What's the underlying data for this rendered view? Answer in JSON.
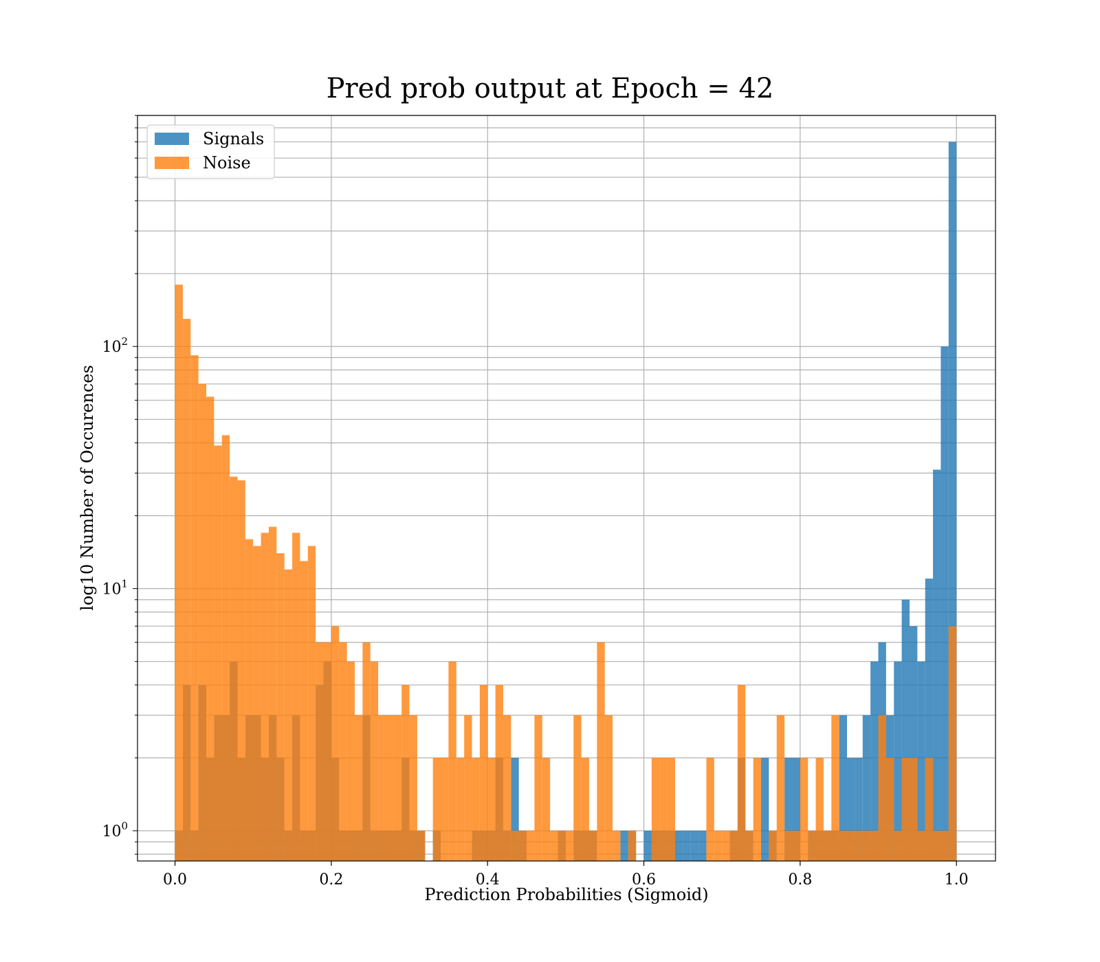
{
  "chart_data": {
    "type": "bar",
    "title": "Pred prob output at Epoch = 42",
    "xlabel": "Prediction Probabilities (Sigmoid)",
    "ylabel": "log10 Number of Occurences",
    "xlim": [
      -0.048,
      1.05
    ],
    "ylim": [
      0.75,
      900
    ],
    "yscale": "log",
    "xticks": [
      0.0,
      0.2,
      0.4,
      0.6,
      0.8,
      1.0
    ],
    "xtick_labels": [
      "0.0",
      "0.2",
      "0.4",
      "0.6",
      "0.8",
      "1.0"
    ],
    "ytick_labels": [
      {
        "base": "10",
        "exp": "0"
      },
      {
        "base": "10",
        "exp": "1"
      },
      {
        "base": "10",
        "exp": "2"
      }
    ],
    "grid": true,
    "legend_position": "top-left",
    "bin_width": 0.01,
    "series": [
      {
        "name": "Signals",
        "color": "#1f77b4",
        "bins": [
          [
            0.0,
            1
          ],
          [
            0.01,
            4
          ],
          [
            0.02,
            1
          ],
          [
            0.03,
            4
          ],
          [
            0.04,
            2
          ],
          [
            0.05,
            3
          ],
          [
            0.06,
            3
          ],
          [
            0.07,
            5
          ],
          [
            0.08,
            2
          ],
          [
            0.09,
            3
          ],
          [
            0.1,
            3
          ],
          [
            0.11,
            2
          ],
          [
            0.12,
            3
          ],
          [
            0.13,
            2
          ],
          [
            0.14,
            1
          ],
          [
            0.15,
            3
          ],
          [
            0.16,
            1
          ],
          [
            0.17,
            1
          ],
          [
            0.18,
            4
          ],
          [
            0.19,
            5
          ],
          [
            0.2,
            2
          ],
          [
            0.21,
            1
          ],
          [
            0.22,
            1
          ],
          [
            0.23,
            1
          ],
          [
            0.24,
            3
          ],
          [
            0.25,
            1
          ],
          [
            0.26,
            1
          ],
          [
            0.27,
            1
          ],
          [
            0.28,
            1
          ],
          [
            0.29,
            2
          ],
          [
            0.3,
            1
          ],
          [
            0.31,
            1
          ],
          [
            0.33,
            1
          ],
          [
            0.38,
            1
          ],
          [
            0.39,
            1
          ],
          [
            0.4,
            1
          ],
          [
            0.41,
            2
          ],
          [
            0.42,
            1
          ],
          [
            0.43,
            2
          ],
          [
            0.44,
            1
          ],
          [
            0.49,
            1
          ],
          [
            0.51,
            1
          ],
          [
            0.52,
            1
          ],
          [
            0.53,
            1
          ],
          [
            0.57,
            1
          ],
          [
            0.58,
            1
          ],
          [
            0.6,
            1
          ],
          [
            0.61,
            1
          ],
          [
            0.62,
            1
          ],
          [
            0.63,
            1
          ],
          [
            0.64,
            1
          ],
          [
            0.65,
            1
          ],
          [
            0.66,
            1
          ],
          [
            0.67,
            1
          ],
          [
            0.71,
            1
          ],
          [
            0.72,
            2
          ],
          [
            0.73,
            1
          ],
          [
            0.75,
            2
          ],
          [
            0.76,
            1
          ],
          [
            0.78,
            2
          ],
          [
            0.79,
            2
          ],
          [
            0.81,
            1
          ],
          [
            0.82,
            1
          ],
          [
            0.83,
            1
          ],
          [
            0.84,
            1
          ],
          [
            0.85,
            3
          ],
          [
            0.86,
            2
          ],
          [
            0.87,
            2
          ],
          [
            0.88,
            3
          ],
          [
            0.89,
            5
          ],
          [
            0.9,
            6
          ],
          [
            0.91,
            3
          ],
          [
            0.92,
            5
          ],
          [
            0.93,
            9
          ],
          [
            0.94,
            7
          ],
          [
            0.95,
            5
          ],
          [
            0.96,
            11
          ],
          [
            0.97,
            31
          ],
          [
            0.98,
            100
          ],
          [
            0.99,
            700
          ]
        ]
      },
      {
        "name": "Noise",
        "color": "#ff7f0e",
        "bins": [
          [
            0.0,
            180
          ],
          [
            0.01,
            130
          ],
          [
            0.02,
            92
          ],
          [
            0.03,
            70
          ],
          [
            0.04,
            62
          ],
          [
            0.05,
            39
          ],
          [
            0.06,
            43
          ],
          [
            0.07,
            29
          ],
          [
            0.08,
            28
          ],
          [
            0.09,
            16
          ],
          [
            0.1,
            15
          ],
          [
            0.11,
            17
          ],
          [
            0.12,
            18
          ],
          [
            0.13,
            14
          ],
          [
            0.14,
            12
          ],
          [
            0.15,
            17
          ],
          [
            0.16,
            13
          ],
          [
            0.17,
            15
          ],
          [
            0.18,
            6
          ],
          [
            0.19,
            6
          ],
          [
            0.2,
            7
          ],
          [
            0.21,
            6
          ],
          [
            0.22,
            5
          ],
          [
            0.23,
            3
          ],
          [
            0.24,
            6
          ],
          [
            0.25,
            5
          ],
          [
            0.26,
            3
          ],
          [
            0.27,
            3
          ],
          [
            0.28,
            3
          ],
          [
            0.29,
            4
          ],
          [
            0.3,
            3
          ],
          [
            0.31,
            1
          ],
          [
            0.33,
            2
          ],
          [
            0.34,
            2
          ],
          [
            0.35,
            5
          ],
          [
            0.36,
            2
          ],
          [
            0.37,
            3
          ],
          [
            0.38,
            2
          ],
          [
            0.39,
            4
          ],
          [
            0.4,
            2
          ],
          [
            0.41,
            4
          ],
          [
            0.42,
            3
          ],
          [
            0.43,
            1
          ],
          [
            0.44,
            1
          ],
          [
            0.45,
            1
          ],
          [
            0.46,
            3
          ],
          [
            0.47,
            2
          ],
          [
            0.48,
            1
          ],
          [
            0.49,
            1
          ],
          [
            0.5,
            1
          ],
          [
            0.51,
            3
          ],
          [
            0.52,
            2
          ],
          [
            0.53,
            1
          ],
          [
            0.54,
            6
          ],
          [
            0.55,
            3
          ],
          [
            0.56,
            1
          ],
          [
            0.58,
            1
          ],
          [
            0.61,
            2
          ],
          [
            0.62,
            2
          ],
          [
            0.63,
            2
          ],
          [
            0.68,
            2
          ],
          [
            0.69,
            1
          ],
          [
            0.7,
            1
          ],
          [
            0.71,
            1
          ],
          [
            0.72,
            4
          ],
          [
            0.73,
            1
          ],
          [
            0.74,
            2
          ],
          [
            0.76,
            1
          ],
          [
            0.77,
            3
          ],
          [
            0.78,
            1
          ],
          [
            0.79,
            1
          ],
          [
            0.8,
            2
          ],
          [
            0.81,
            1
          ],
          [
            0.82,
            2
          ],
          [
            0.83,
            1
          ],
          [
            0.84,
            3
          ],
          [
            0.85,
            1
          ],
          [
            0.86,
            1
          ],
          [
            0.87,
            1
          ],
          [
            0.88,
            1
          ],
          [
            0.89,
            1
          ],
          [
            0.9,
            3
          ],
          [
            0.91,
            2
          ],
          [
            0.92,
            1
          ],
          [
            0.93,
            2
          ],
          [
            0.94,
            2
          ],
          [
            0.95,
            1
          ],
          [
            0.96,
            2
          ],
          [
            0.97,
            1
          ],
          [
            0.98,
            1
          ],
          [
            0.99,
            7
          ]
        ]
      }
    ]
  }
}
